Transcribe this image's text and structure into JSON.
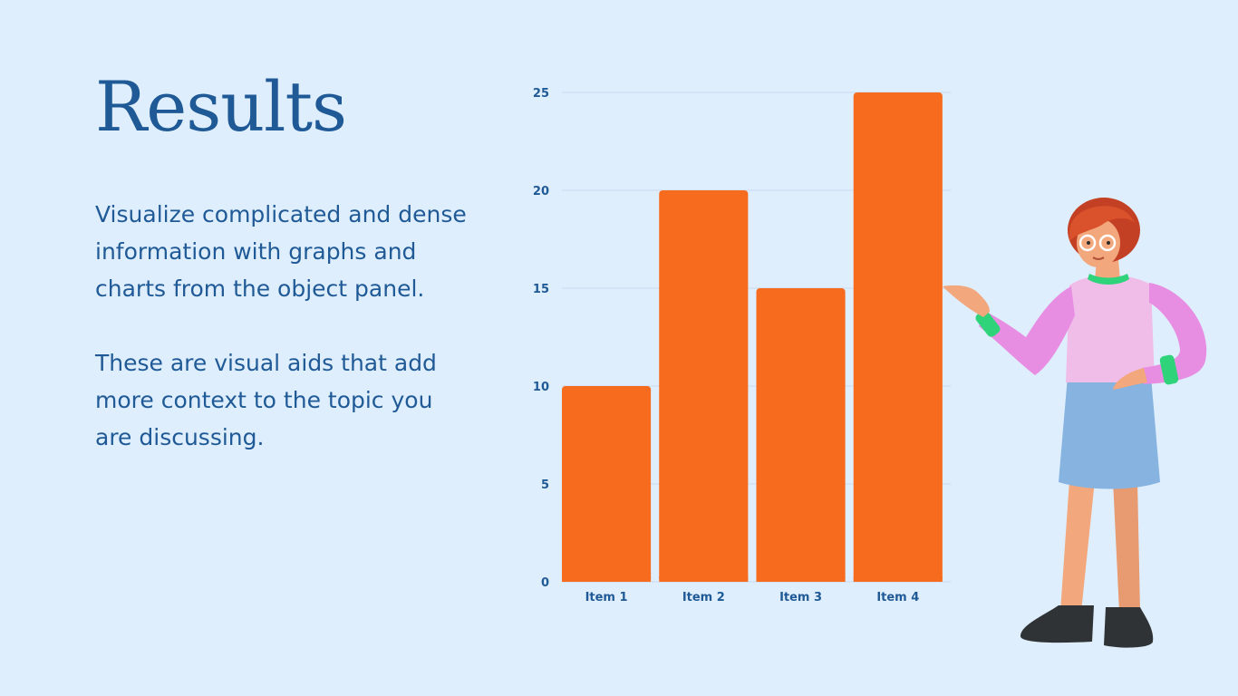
{
  "slide": {
    "title": "Results",
    "paragraphs": [
      "Visualize complicated and dense information with graphs and charts from the object panel.",
      "These are visual aids that add more context to the topic you are discussing."
    ]
  },
  "colors": {
    "background": "#dfeefd",
    "text": "#1f5a96",
    "bar": "#f76b1f",
    "grid": "#c9dbee"
  },
  "chart_data": {
    "type": "bar",
    "categories": [
      "Item 1",
      "Item 2",
      "Item 3",
      "Item 4"
    ],
    "values": [
      10,
      20,
      15,
      25
    ],
    "title": "",
    "xlabel": "",
    "ylabel": "",
    "ylim": [
      0,
      25
    ],
    "yticks": [
      0,
      5,
      10,
      15,
      20,
      25
    ],
    "grid": true,
    "legend": "none"
  }
}
